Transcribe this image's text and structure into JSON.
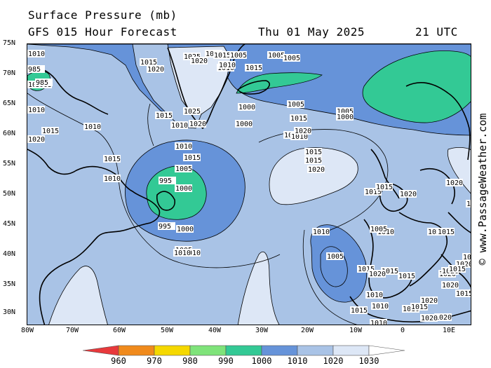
{
  "header": {
    "title": "Surface Pressure (mb)",
    "subtitle": "GFS 015 Hour Forecast",
    "date": "Thu 01 May 2025",
    "time": "21 UTC"
  },
  "credit": "© www.PassageWeather.com",
  "axes": {
    "lat_labels": [
      "75N",
      "70N",
      "65N",
      "60N",
      "55N",
      "50N",
      "45N",
      "40N",
      "35N",
      "30N"
    ],
    "lon_labels": [
      "80W",
      "70W",
      "60W",
      "50W",
      "40W",
      "30W",
      "20W",
      "10W",
      "0",
      "10E"
    ]
  },
  "legend": {
    "values": [
      "960",
      "970",
      "980",
      "990",
      "1000",
      "1010",
      "1020",
      "1030"
    ],
    "colors": [
      "#e8393c",
      "#f08a1c",
      "#f5d800",
      "#7fe37a",
      "#33c995",
      "#6693d9",
      "#a9c3e6",
      "#dde7f6",
      "#ffffff"
    ]
  },
  "colors": {
    "band_990_1000": "#33c995",
    "band_1000_1010": "#6693d9",
    "band_1010_1020": "#a9c3e6",
    "band_1020_1030": "#dde7f6",
    "coastline": "#000000",
    "isobar": "#000000"
  },
  "centers": [
    {
      "name": "Low near Newfoundland",
      "value": "995"
    },
    {
      "name": "Low over western Greenland coast",
      "value": "985"
    },
    {
      "name": "Low west of Portugal",
      "value": "1005"
    },
    {
      "name": "High mid-Atlantic",
      "value": "1020"
    }
  ],
  "isobar_labels": [
    "1010",
    "1015",
    "1020",
    "1025",
    "1020",
    "1015",
    "1015",
    "1005",
    "1005",
    "985",
    "1005",
    "1005",
    "1010",
    "1015",
    "1010",
    "1020",
    "1015",
    "1010",
    "1015",
    "1025",
    "1010",
    "1020",
    "1000",
    "1000",
    "1005",
    "1010",
    "1010",
    "1015",
    "1005",
    "1005",
    "1000",
    "1005",
    "1010",
    "1015",
    "1020",
    "1015",
    "1015",
    "1010",
    "1015",
    "1005",
    "1000",
    "995",
    "1000",
    "1005",
    "1010",
    "1010",
    "1010",
    "1015",
    "1015",
    "1020",
    "1020",
    "1015",
    "1020",
    "1010",
    "1005",
    "1015",
    "1015",
    "1015",
    "1020",
    "1015",
    "1020",
    "1020",
    "1010",
    "1010",
    "1010",
    "1015",
    "1020",
    "1020",
    "1020",
    "1010",
    "1015",
    "1015",
    "1010",
    "1020",
    "1020",
    "1015"
  ]
}
